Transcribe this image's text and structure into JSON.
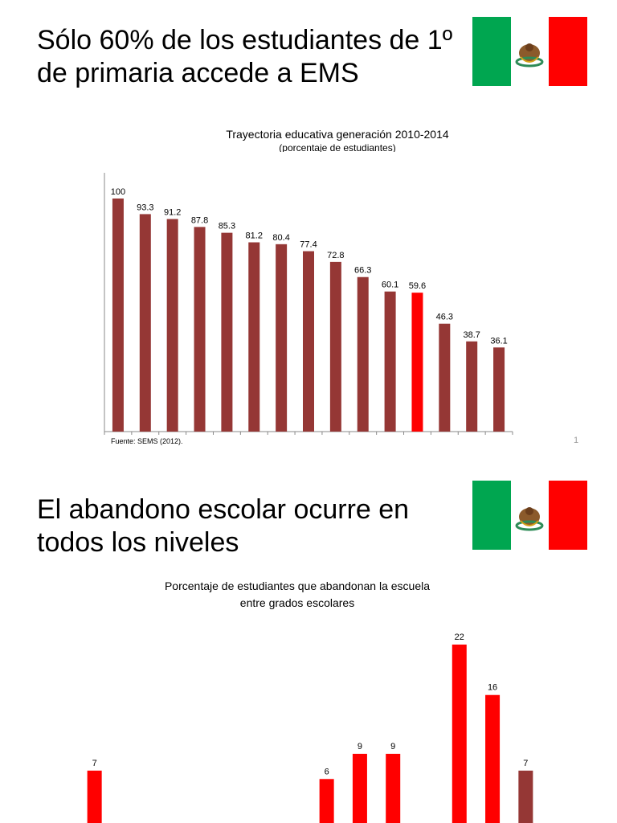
{
  "slides": [
    {
      "title": "Sólo 60% de los estudiantes de 1º de primaria accede a EMS",
      "chart_title": "Trayectoria educativa generación 2010-2014",
      "chart_subtitle": "(porcentaje de estudiantes)",
      "source": "Fuente: SEMS (2012).",
      "page_number": "1"
    },
    {
      "title": "El abandono escolar ocurre en todos los niveles",
      "chart_title_line1": "Porcentaje de estudiantes que abandonan la escuela",
      "chart_title_line2": "entre grados escolares"
    }
  ],
  "colors": {
    "bar": "#953735",
    "highlight": "#ff0000",
    "flag_green": "#00a650",
    "flag_white": "#ffffff",
    "flag_red": "#ff0000"
  },
  "chart_data": [
    {
      "type": "bar",
      "title": "Trayectoria educativa generación 2010-2014",
      "subtitle": "(porcentaje de estudiantes)",
      "values": [
        100,
        93.3,
        91.2,
        87.8,
        85.3,
        81.2,
        80.4,
        77.4,
        72.8,
        66.3,
        60.1,
        59.6,
        46.3,
        38.7,
        36.1
      ],
      "labels": [
        "100",
        "93.3",
        "91.2",
        "87.8",
        "85.3",
        "81.2",
        "80.4",
        "77.4",
        "72.8",
        "66.3",
        "60.1",
        "59.6",
        "46.3",
        "38.7",
        "36.1"
      ],
      "highlight_index": 11,
      "ylim": [
        0,
        100
      ],
      "grid": false
    },
    {
      "type": "bar",
      "title": "Porcentaje de estudiantes que abandonan la escuela entre grados escolares",
      "values": [
        7,
        null,
        null,
        null,
        null,
        null,
        null,
        6,
        9,
        9,
        null,
        22,
        16,
        7
      ],
      "labels": [
        "7",
        "",
        "",
        "",
        "",
        "",
        "",
        "6",
        "9",
        "9",
        "",
        "22",
        "16",
        "7"
      ],
      "colors": [
        "highlight",
        "",
        "",
        "",
        "",
        "",
        "",
        "highlight",
        "highlight",
        "highlight",
        "",
        "highlight",
        "highlight",
        "bar"
      ],
      "ylim": [
        0,
        22
      ],
      "grid": false
    }
  ]
}
